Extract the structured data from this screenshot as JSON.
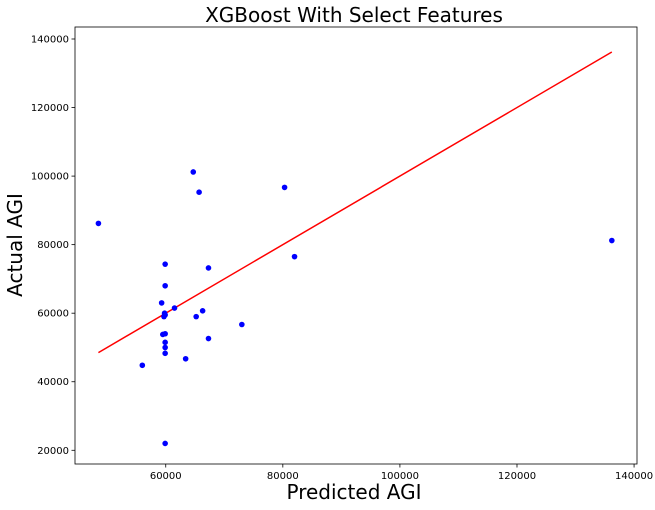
{
  "chart_data": {
    "type": "scatter",
    "title": "XGBoost With Select Features",
    "xlabel": "Predicted AGI",
    "ylabel": "Actual AGI",
    "xlim": [
      44500,
      140500
    ],
    "ylim": [
      16000,
      143500
    ],
    "x_ticks": [
      {
        "value": 60000,
        "label": "60000"
      },
      {
        "value": 80000,
        "label": "80000"
      },
      {
        "value": 100000,
        "label": "100000"
      },
      {
        "value": 120000,
        "label": "120000"
      },
      {
        "value": 140000,
        "label": "140000"
      }
    ],
    "y_ticks": [
      {
        "value": 20000,
        "label": "20000"
      },
      {
        "value": 40000,
        "label": "40000"
      },
      {
        "value": 60000,
        "label": "60000"
      },
      {
        "value": 80000,
        "label": "80000"
      },
      {
        "value": 100000,
        "label": "100000"
      },
      {
        "value": 120000,
        "label": "120000"
      },
      {
        "value": 140000,
        "label": "140000"
      }
    ],
    "grid": false,
    "series": [
      {
        "name": "data",
        "kind": "scatter",
        "color": "#0000ff",
        "points": [
          {
            "x": 48500,
            "y": 86200
          },
          {
            "x": 56000,
            "y": 44800
          },
          {
            "x": 59300,
            "y": 63000
          },
          {
            "x": 59500,
            "y": 53800
          },
          {
            "x": 59700,
            "y": 59000
          },
          {
            "x": 59800,
            "y": 60000
          },
          {
            "x": 59900,
            "y": 22000
          },
          {
            "x": 59900,
            "y": 48300
          },
          {
            "x": 59900,
            "y": 50000
          },
          {
            "x": 59900,
            "y": 51500
          },
          {
            "x": 59900,
            "y": 54000
          },
          {
            "x": 59900,
            "y": 59500
          },
          {
            "x": 59900,
            "y": 68000
          },
          {
            "x": 59900,
            "y": 74300
          },
          {
            "x": 61500,
            "y": 61500
          },
          {
            "x": 63400,
            "y": 46700
          },
          {
            "x": 64700,
            "y": 101200
          },
          {
            "x": 65200,
            "y": 59000
          },
          {
            "x": 65700,
            "y": 95300
          },
          {
            "x": 66300,
            "y": 60700
          },
          {
            "x": 67300,
            "y": 73200
          },
          {
            "x": 67300,
            "y": 52600
          },
          {
            "x": 73000,
            "y": 56700
          },
          {
            "x": 80300,
            "y": 96700
          },
          {
            "x": 82000,
            "y": 76500
          },
          {
            "x": 136200,
            "y": 81200
          }
        ]
      },
      {
        "name": "fit",
        "kind": "line",
        "color": "#ff0000",
        "points": [
          {
            "x": 48500,
            "y": 48500
          },
          {
            "x": 136200,
            "y": 136200
          }
        ]
      }
    ]
  }
}
